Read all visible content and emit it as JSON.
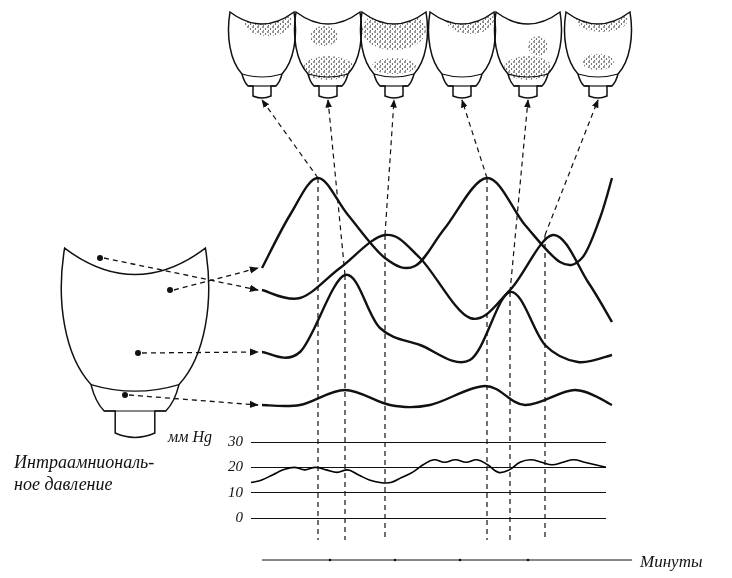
{
  "chart_data": {
    "type": "line",
    "title": [
      "Интраамниональ-",
      "ное давление"
    ],
    "ylabel": "мм Hg",
    "xlabel": "Минуты",
    "categories": [
      null,
      null,
      null,
      null,
      null,
      null,
      null,
      null,
      null,
      null,
      null,
      null,
      null,
      null,
      null,
      null,
      null,
      null,
      null,
      null,
      null,
      null,
      null,
      null,
      null,
      null,
      null,
      null,
      null,
      null,
      null,
      null,
      null,
      null
    ],
    "values": [
      14,
      15,
      17,
      19,
      20,
      19,
      20,
      19,
      18,
      19,
      17,
      15,
      14,
      14,
      16,
      18,
      21,
      23,
      22,
      23,
      22,
      23,
      21,
      18,
      19,
      22,
      23,
      22,
      21,
      22,
      23,
      22,
      21,
      20
    ],
    "color": "#000000",
    "ylim": [
      0,
      30
    ],
    "yticks": [
      0,
      10,
      20,
      30
    ],
    "grid": true,
    "tick_labels": "y"
  }
}
